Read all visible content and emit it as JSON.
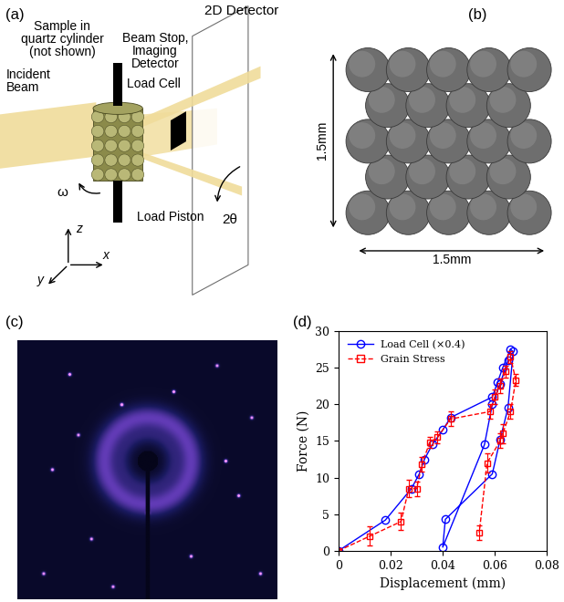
{
  "panel_a": {
    "label": "(a)",
    "texts": {
      "detector": "2D Detector",
      "sample": "Sample in\nquartz cylinder\n(not shown)",
      "beam_stop": "Beam Stop,\nImaging\nDetector",
      "load_cell": "Load Cell",
      "incident_beam": "Incident\nBeam",
      "omega": "ω",
      "two_theta": "2θ",
      "load_piston": "Load Piston",
      "z": "z",
      "y": "y",
      "x": "x"
    }
  },
  "panel_b": {
    "label": "(b)",
    "height": "1.5mm",
    "width": "1.5mm"
  },
  "panel_c": {
    "label": "(c)"
  },
  "chart_data": {
    "label": "(d)",
    "type": "line",
    "x_label": "Displacement (mm)",
    "y_label": "Force (N)",
    "xlim": [
      0,
      0.08
    ],
    "xticks": [
      0,
      0.02,
      0.04,
      0.06,
      0.08
    ],
    "ylim": [
      0,
      30
    ],
    "yticks": [
      0,
      5,
      10,
      15,
      20,
      25,
      30
    ],
    "legend": "upper left",
    "series": [
      {
        "name": "Load Cell (×0.4)",
        "color": "#0000ff",
        "marker": "o",
        "line_style": "solid",
        "x": [
          0,
          0.018,
          0.028,
          0.031,
          0.033,
          0.036,
          0.04,
          0.043,
          0.059,
          0.061,
          0.063,
          0.066,
          0.067,
          0.065,
          0.062,
          0.059,
          0.041,
          0.04,
          0.056,
          0.059,
          0.062,
          0.065
        ],
        "values": [
          0,
          4.2,
          8.5,
          10.5,
          12.5,
          14.5,
          16.5,
          18.2,
          21,
          23,
          25,
          27.5,
          27.2,
          19.5,
          15.2,
          10.5,
          4.3,
          0.5,
          14.5,
          20,
          22.8,
          26
        ]
      },
      {
        "name": "Grain Stress",
        "color": "#ff0000",
        "marker": "s",
        "line_style": "dashed",
        "x": [
          0,
          0.012,
          0.024,
          0.027,
          0.03,
          0.032,
          0.035,
          0.038,
          0.043,
          0.058,
          0.06,
          0.062,
          0.064,
          0.066,
          0.068,
          0.066,
          0.063,
          0.062,
          0.057,
          0.054
        ],
        "values": [
          0,
          2,
          4,
          8.5,
          8.5,
          11.8,
          14.8,
          15.5,
          18,
          19,
          21,
          22.5,
          24.5,
          26.5,
          23.3,
          19,
          16,
          15,
          12,
          2.5
        ],
        "error": [
          0,
          1.3,
          1.2,
          1.2,
          1.0,
          1.0,
          0.8,
          0.8,
          1.0,
          1.0,
          1.0,
          1.0,
          0.8,
          0.8,
          0.8,
          1.0,
          1.3,
          1.0,
          1.3,
          1.0
        ]
      }
    ]
  }
}
